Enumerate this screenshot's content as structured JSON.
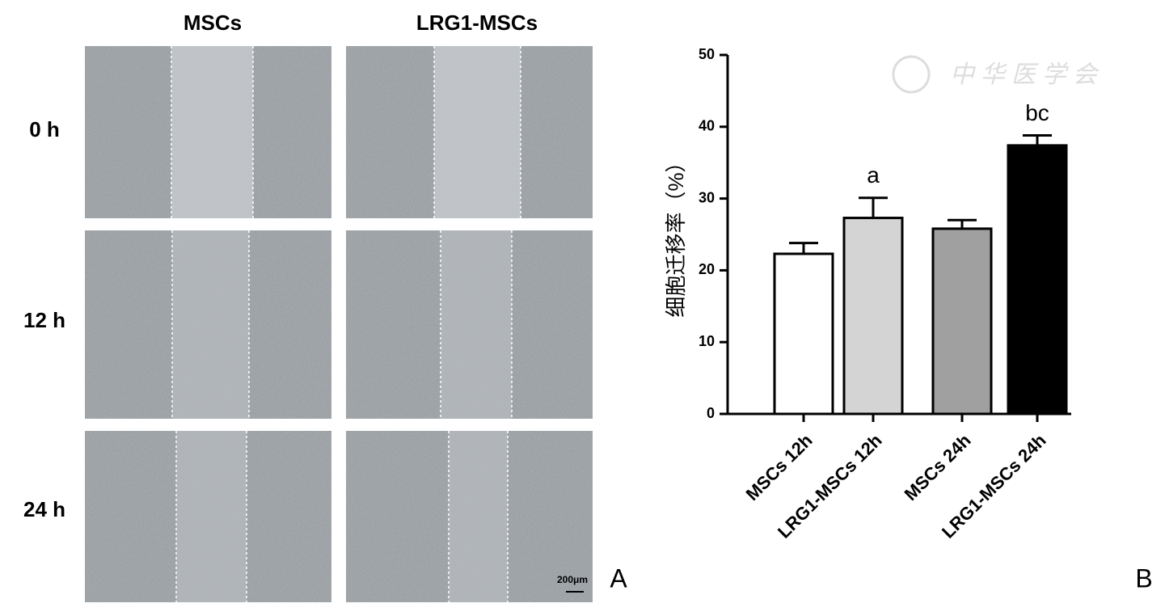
{
  "figure": {
    "columns": [
      "MSCs",
      "LRG1-MSCs"
    ],
    "rows": [
      "0 h",
      "12 h",
      "24 h"
    ],
    "scale_bar": "200μm",
    "panel_a": "A",
    "panel_b": "B",
    "watermark": "中华医学会"
  },
  "chart_data": {
    "type": "bar",
    "ylabel": "细胞迁移率（%）",
    "categories": [
      "MSCs 12h",
      "LRG1-MSCs 12h",
      "MSCs 24h",
      "LRG1-MSCs 24h"
    ],
    "values": [
      22.3,
      27.3,
      25.8,
      37.4
    ],
    "errors": [
      1.5,
      2.8,
      1.2,
      1.4
    ],
    "colors": [
      "#ffffff",
      "#d4d4d4",
      "#a0a0a0",
      "#000000"
    ],
    "annotations": [
      {
        "x": "LRG1-MSCs 12h",
        "text": "a"
      },
      {
        "x": "LRG1-MSCs 24h",
        "text": "bc"
      }
    ],
    "ylim": [
      0,
      50
    ],
    "yticks": [
      0,
      10,
      20,
      30,
      40,
      50
    ]
  }
}
